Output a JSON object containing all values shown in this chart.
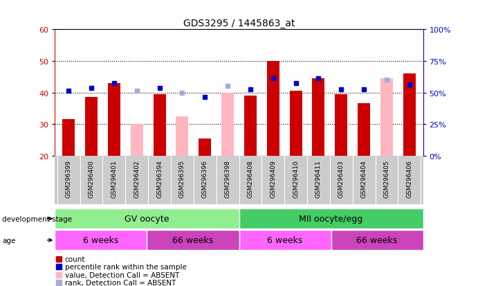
{
  "title": "GDS3295 / 1445863_at",
  "samples": [
    "GSM296399",
    "GSM296400",
    "GSM296401",
    "GSM296402",
    "GSM296394",
    "GSM296395",
    "GSM296396",
    "GSM296398",
    "GSM296408",
    "GSM296409",
    "GSM296410",
    "GSM296411",
    "GSM296403",
    "GSM296404",
    "GSM296405",
    "GSM296406"
  ],
  "count_values": [
    31.5,
    38.5,
    43.0,
    null,
    39.5,
    null,
    25.5,
    null,
    39.0,
    50.0,
    40.5,
    44.5,
    39.5,
    36.5,
    null,
    46.0
  ],
  "count_absent": [
    null,
    null,
    null,
    30.0,
    null,
    32.5,
    null,
    40.0,
    null,
    null,
    null,
    null,
    null,
    null,
    44.5,
    null
  ],
  "rank_values": [
    40.5,
    41.5,
    43.0,
    null,
    41.5,
    null,
    38.5,
    null,
    41.0,
    44.5,
    43.0,
    44.5,
    41.0,
    41.0,
    null,
    42.5
  ],
  "rank_absent": [
    null,
    null,
    null,
    40.5,
    null,
    40.0,
    null,
    42.0,
    null,
    null,
    null,
    null,
    null,
    null,
    44.0,
    null
  ],
  "ylim_left": [
    20,
    60
  ],
  "ylim_right": [
    0,
    100
  ],
  "yticks_left": [
    20,
    30,
    40,
    50,
    60
  ],
  "yticks_right": [
    0,
    25,
    50,
    75,
    100
  ],
  "bar_width": 0.55,
  "count_color": "#CC0000",
  "count_absent_color": "#FFB6C1",
  "rank_color": "#0000CC",
  "rank_absent_color": "#AAAADD",
  "background_color": "#FFFFFF",
  "tick_area_color": "#CCCCCC",
  "ylabel_left_color": "#CC0000",
  "ylabel_right_color": "#0000CC",
  "gv_color": "#90EE90",
  "mii_color": "#44CC66",
  "age_color1": "#FF66FF",
  "age_color2": "#CC44BB",
  "dev_stage_label": "development stage",
  "age_label": "age",
  "gv_text": "GV oocyte",
  "mii_text": "MII oocyte/egg",
  "age_labels": [
    "6 weeks",
    "66 weeks",
    "6 weeks",
    "66 weeks"
  ],
  "legend_items": [
    [
      "#CC0000",
      "count"
    ],
    [
      "#0000CC",
      "percentile rank within the sample"
    ],
    [
      "#FFB6C1",
      "value, Detection Call = ABSENT"
    ],
    [
      "#AAAADD",
      "rank, Detection Call = ABSENT"
    ]
  ]
}
